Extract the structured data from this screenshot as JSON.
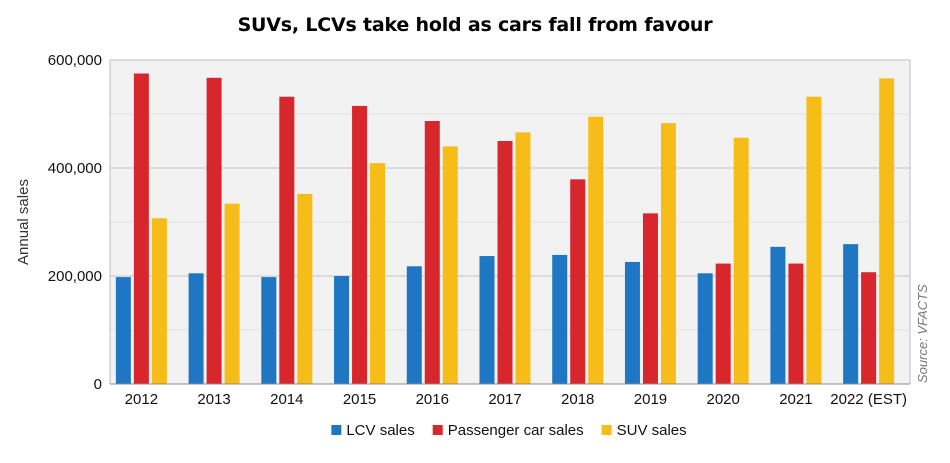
{
  "chart_data": {
    "type": "bar",
    "title": "SUVs, LCVs take hold as cars fall from favour",
    "xlabel": "",
    "ylabel": "Annual sales",
    "ylim": [
      0,
      600000
    ],
    "yticks": [
      0,
      200000,
      400000,
      600000
    ],
    "ytick_labels": [
      "0",
      "200,000",
      "400,000",
      "600,000"
    ],
    "grid": true,
    "legend_position": "bottom",
    "categories": [
      "2012",
      "2013",
      "2014",
      "2015",
      "2016",
      "2017",
      "2018",
      "2019",
      "2020",
      "2021",
      "2022 (EST)"
    ],
    "series": [
      {
        "name": "LCV sales",
        "color": "#1f77c4",
        "values": [
          198000,
          205000,
          198000,
          200000,
          218000,
          237000,
          239000,
          226000,
          205000,
          254000,
          259000
        ]
      },
      {
        "name": "Passenger car sales",
        "color": "#d7262c",
        "values": [
          575000,
          567000,
          532000,
          515000,
          487000,
          450000,
          379000,
          316000,
          223000,
          223000,
          207000
        ]
      },
      {
        "name": "SUV sales",
        "color": "#f6bd19",
        "values": [
          307000,
          334000,
          352000,
          409000,
          440000,
          466000,
          495000,
          483000,
          456000,
          532000,
          566000
        ]
      }
    ],
    "source": "Source: VFACTS"
  }
}
